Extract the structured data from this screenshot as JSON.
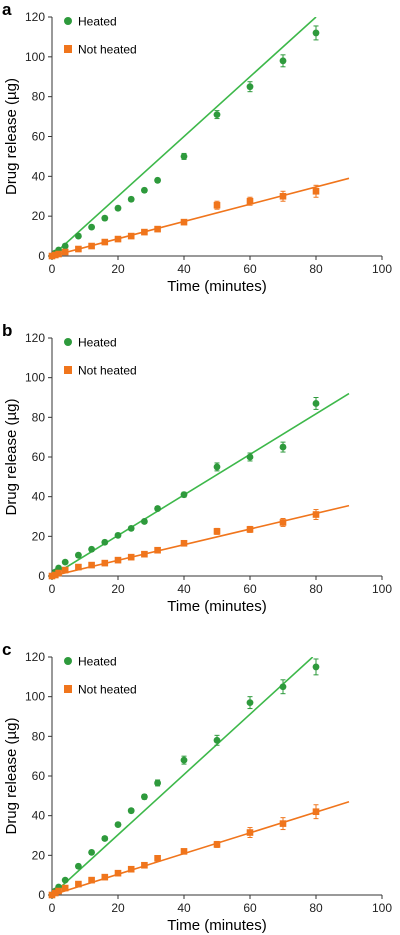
{
  "colors": {
    "heated": "#2e9a3c",
    "heated_line": "#3db84a",
    "not_heated": "#f0751c",
    "axis": "#333333"
  },
  "chart_data": [
    {
      "panel_label": "a",
      "type": "scatter",
      "xlabel": "Time (minutes)",
      "ylabel": "Drug release (µg)",
      "xlim": [
        0,
        100
      ],
      "ylim": [
        0,
        120
      ],
      "xticks": [
        0,
        20,
        40,
        60,
        80,
        100
      ],
      "yticks": [
        0,
        20,
        40,
        60,
        80,
        100,
        120
      ],
      "legend_position": "top-left",
      "series": [
        {
          "name": "Heated",
          "marker": "circle",
          "color": "#2e9a3c",
          "x": [
            0,
            1,
            2,
            4,
            8,
            12,
            16,
            20,
            24,
            28,
            32,
            40,
            50,
            60,
            70,
            80
          ],
          "y": [
            0,
            1.5,
            3,
            5,
            10,
            14.5,
            19,
            24,
            28.5,
            33,
            38,
            50,
            71,
            85,
            98,
            112
          ],
          "err": [
            0.5,
            0.5,
            0.5,
            0.8,
            1,
            1,
            1,
            1,
            1,
            1,
            1,
            1.5,
            2,
            2.5,
            3,
            3.5
          ],
          "fit_line": [
            [
              0,
              0
            ],
            [
              80,
              120
            ]
          ]
        },
        {
          "name": "Not heated",
          "marker": "square",
          "color": "#f0751c",
          "x": [
            0,
            1,
            2,
            4,
            8,
            12,
            16,
            20,
            24,
            28,
            32,
            40,
            50,
            60,
            70,
            80
          ],
          "y": [
            0,
            0.5,
            1,
            2,
            3.5,
            5,
            7,
            8.5,
            10,
            12,
            13.5,
            17,
            25.5,
            27.5,
            30,
            32.5
          ],
          "err": [
            0.3,
            0.3,
            0.3,
            0.5,
            0.5,
            0.5,
            0.5,
            0.8,
            0.8,
            0.8,
            0.8,
            1,
            2,
            2,
            2.5,
            3
          ],
          "fit_line": [
            [
              0,
              0
            ],
            [
              90,
              39
            ]
          ]
        }
      ]
    },
    {
      "panel_label": "b",
      "type": "scatter",
      "xlabel": "Time (minutes)",
      "ylabel": "Drug release (µg)",
      "xlim": [
        0,
        100
      ],
      "ylim": [
        0,
        120
      ],
      "xticks": [
        0,
        20,
        40,
        60,
        80,
        100
      ],
      "yticks": [
        0,
        20,
        40,
        60,
        80,
        100,
        120
      ],
      "legend_position": "top-left",
      "series": [
        {
          "name": "Heated",
          "marker": "circle",
          "color": "#2e9a3c",
          "x": [
            0,
            1,
            2,
            4,
            8,
            12,
            16,
            20,
            24,
            28,
            32,
            40,
            50,
            60,
            70,
            80
          ],
          "y": [
            0,
            2,
            4,
            7,
            10.5,
            13.5,
            17,
            20.5,
            24,
            27.5,
            34,
            41,
            55,
            60,
            65,
            87
          ],
          "err": [
            0.5,
            0.5,
            0.5,
            0.8,
            1,
            1,
            1,
            1,
            1,
            1,
            1,
            1.2,
            2,
            2,
            2.5,
            3
          ],
          "fit_line": [
            [
              0,
              0
            ],
            [
              90,
              92
            ]
          ]
        },
        {
          "name": "Not heated",
          "marker": "square",
          "color": "#f0751c",
          "x": [
            0,
            1,
            2,
            4,
            8,
            12,
            16,
            20,
            24,
            28,
            32,
            40,
            50,
            60,
            70,
            80
          ],
          "y": [
            0,
            0.5,
            1.5,
            3,
            4.5,
            5.5,
            6.5,
            8,
            9.5,
            11,
            13,
            16.5,
            22.5,
            23.5,
            27,
            31
          ],
          "err": [
            0.3,
            0.3,
            0.3,
            0.5,
            0.5,
            0.5,
            0.5,
            0.8,
            0.8,
            0.8,
            0.8,
            1,
            1.5,
            1.5,
            2,
            2.5
          ],
          "fit_line": [
            [
              0,
              0
            ],
            [
              90,
              35.5
            ]
          ]
        }
      ]
    },
    {
      "panel_label": "c",
      "type": "scatter",
      "xlabel": "Time (minutes)",
      "ylabel": "Drug release (µg)",
      "xlim": [
        0,
        100
      ],
      "ylim": [
        0,
        120
      ],
      "xticks": [
        0,
        20,
        40,
        60,
        80,
        100
      ],
      "yticks": [
        0,
        20,
        40,
        60,
        80,
        100,
        120
      ],
      "legend_position": "top-left",
      "series": [
        {
          "name": "Heated",
          "marker": "circle",
          "color": "#2e9a3c",
          "x": [
            0,
            1,
            2,
            4,
            8,
            12,
            16,
            20,
            24,
            28,
            32,
            40,
            50,
            60,
            70,
            80
          ],
          "y": [
            0,
            2,
            4,
            7.5,
            14.5,
            21.5,
            28.5,
            35.5,
            42.5,
            49.5,
            56.5,
            68,
            78,
            97,
            105,
            115
          ],
          "err": [
            0.5,
            0.5,
            0.5,
            0.8,
            1,
            1,
            1,
            1,
            1,
            1.2,
            1.5,
            2,
            2.5,
            3,
            3.5,
            4
          ],
          "fit_line": [
            [
              0,
              0
            ],
            [
              79,
              120
            ]
          ]
        },
        {
          "name": "Not heated",
          "marker": "square",
          "color": "#f0751c",
          "x": [
            0,
            1,
            2,
            4,
            8,
            12,
            16,
            20,
            24,
            28,
            32,
            40,
            50,
            60,
            70,
            80
          ],
          "y": [
            0,
            1,
            2,
            3.5,
            5.5,
            7.5,
            9,
            11,
            13,
            15,
            18.5,
            22,
            25.5,
            31.5,
            36,
            42
          ],
          "err": [
            0.3,
            0.3,
            0.3,
            0.5,
            0.5,
            0.5,
            0.5,
            0.8,
            0.8,
            0.8,
            0.8,
            1,
            1.5,
            2.5,
            3,
            3.5
          ],
          "fit_line": [
            [
              0,
              0
            ],
            [
              90,
              47
            ]
          ]
        }
      ]
    }
  ]
}
